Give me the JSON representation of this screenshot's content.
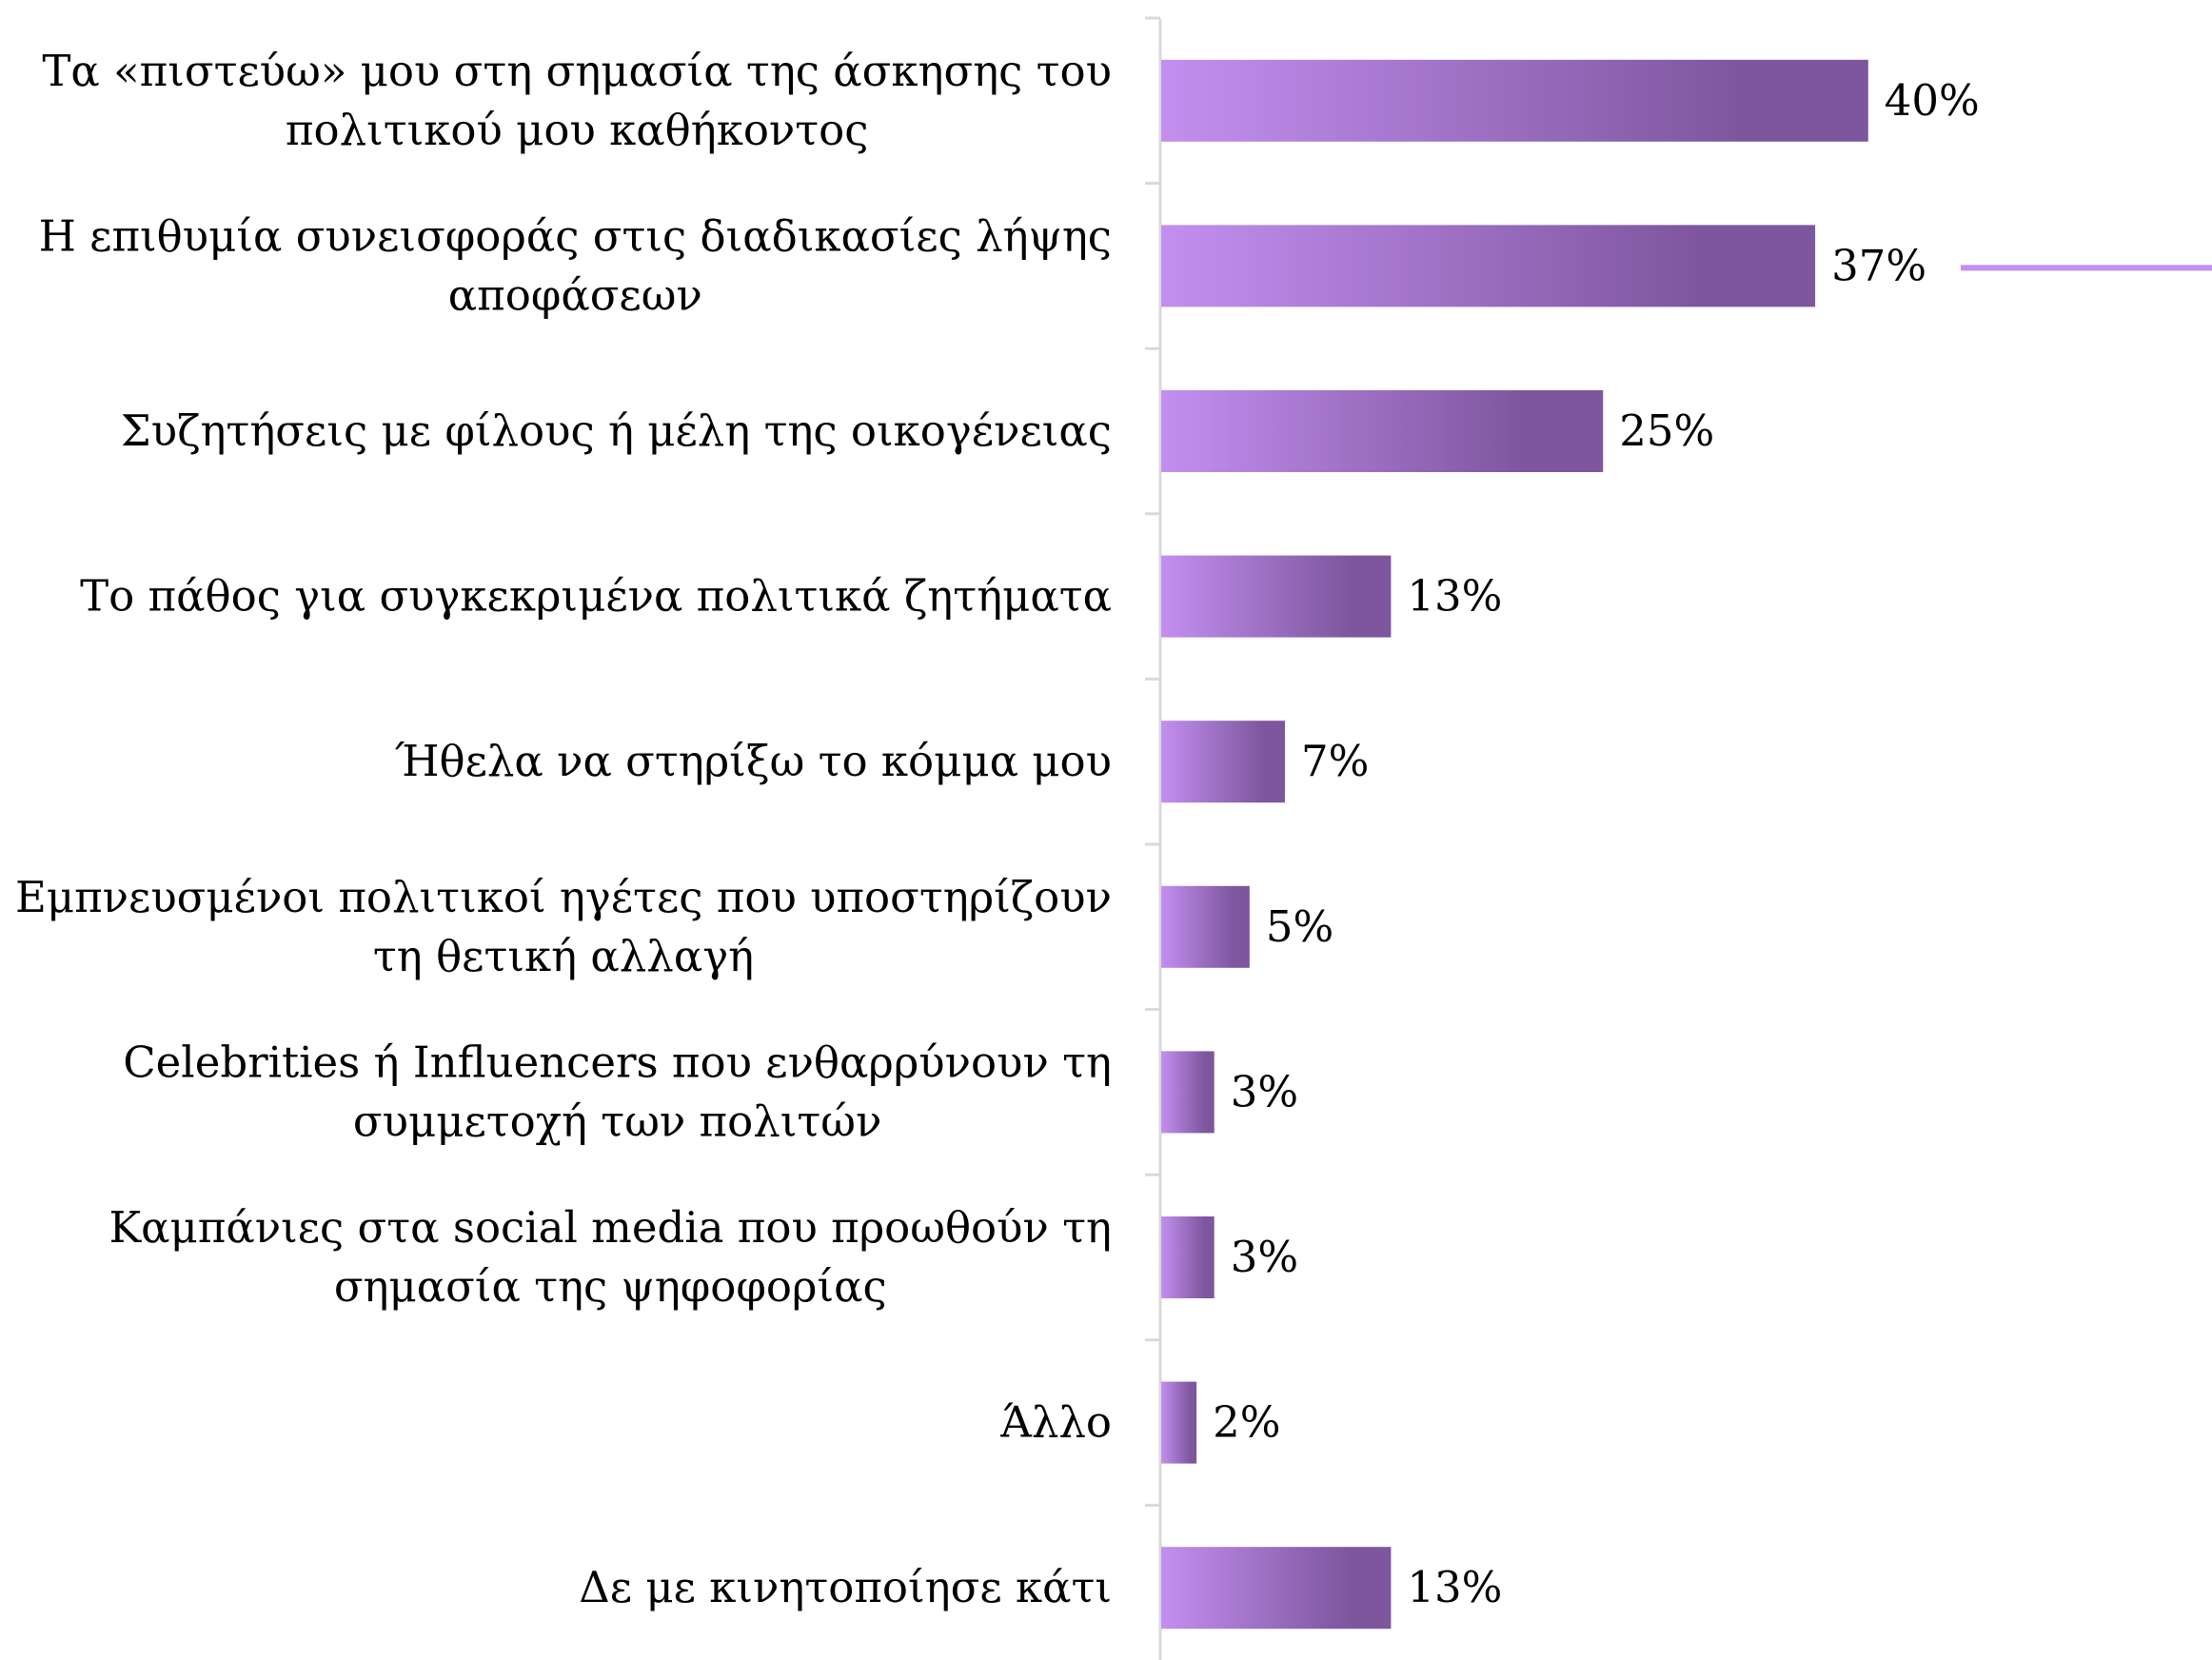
{
  "chart_data": {
    "type": "bar",
    "orientation": "horizontal",
    "categories": [
      [
        "Τα «πιστεύω» μου στη σημασία της άσκησης του",
        "πολιτικού μου καθήκοντος"
      ],
      [
        "Η επιθυμία συνεισφοράς στις διαδικασίες λήψης",
        "αποφάσεων"
      ],
      [
        "Συζητήσεις με φίλους ή μέλη της οικογένειας"
      ],
      [
        "Το πάθος για συγκεκριμένα πολιτικά ζητήματα"
      ],
      [
        "Ήθελα να στηρίξω το κόμμα μου"
      ],
      [
        "Εμπνευσμένοι πολιτικοί ηγέτες που υποστηρίζουν",
        "τη θετική αλλαγή"
      ],
      [
        "Celebrities ή Influencers που ενθαρρύνουν τη",
        "συμμετοχή των πολιτών"
      ],
      [
        "Καμπάνιες στα social media που προωθούν τη",
        "σημασία της ψηφοφορίας"
      ],
      [
        "Άλλο"
      ],
      [
        "Δε με κινητοποίησε κάτι"
      ]
    ],
    "values": [
      40,
      37,
      25,
      13,
      7,
      5,
      3,
      3,
      2,
      13
    ],
    "value_labels": [
      "40%",
      "37%",
      "25%",
      "13%",
      "7%",
      "5%",
      "3%",
      "3%",
      "2%",
      "13%"
    ],
    "unit": "%",
    "xlim": [
      0,
      100
    ],
    "grid": false,
    "colors": {
      "bar_start": "#c38ff0",
      "bar_end": "#7e569e",
      "axis": "#d9d9d9",
      "line": "#c38ff0"
    }
  }
}
